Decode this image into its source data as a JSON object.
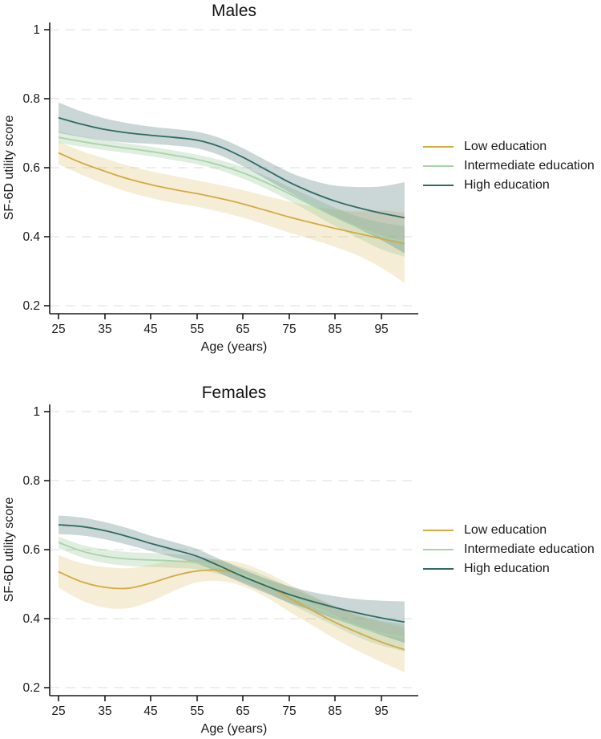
{
  "figure": {
    "ylabel": "SF-6D utility score",
    "xlabel": "Age (years)",
    "colors": {
      "low": "#d3aa45",
      "intermediate": "#a9d3ab",
      "high": "#2e6b64",
      "gridline": "#e3e3e3",
      "axis": "#1a1a1a"
    }
  },
  "chart_data": [
    {
      "type": "line",
      "title": "Males",
      "xlabel": "Age (years)",
      "ylabel": "SF-6D utility score",
      "x_ticks": [
        25,
        35,
        45,
        55,
        65,
        75,
        85,
        95
      ],
      "y_ticks": [
        1,
        0.8,
        0.6,
        0.4,
        0.2
      ],
      "xlim": [
        23,
        103
      ],
      "ylim": [
        0.2,
        1.0
      ],
      "grid": "horizontal-dashed",
      "legend_position": "right",
      "x": [
        25,
        30,
        35,
        40,
        45,
        50,
        55,
        60,
        65,
        70,
        75,
        80,
        85,
        90,
        95,
        100
      ],
      "series": [
        {
          "name": "Low education",
          "color": "#d3aa45",
          "band_color": "rgba(214,174,70,0.22)",
          "values": [
            0.643,
            0.614,
            0.59,
            0.568,
            0.551,
            0.537,
            0.525,
            0.511,
            0.495,
            0.476,
            0.457,
            0.44,
            0.424,
            0.409,
            0.394,
            0.38
          ],
          "ci_low": [
            0.61,
            0.58,
            0.553,
            0.53,
            0.512,
            0.498,
            0.487,
            0.472,
            0.455,
            0.434,
            0.412,
            0.392,
            0.37,
            0.345,
            0.31,
            0.266
          ],
          "ci_high": [
            0.676,
            0.648,
            0.627,
            0.606,
            0.59,
            0.576,
            0.563,
            0.55,
            0.535,
            0.518,
            0.502,
            0.488,
            0.478,
            0.473,
            0.476,
            0.47
          ]
        },
        {
          "name": "Intermediate education",
          "color": "#a9d3ab",
          "band_color": "rgba(150,200,150,0.30)",
          "values": [
            0.688,
            0.676,
            0.665,
            0.656,
            0.647,
            0.636,
            0.624,
            0.607,
            0.585,
            0.557,
            0.525,
            0.491,
            0.457,
            0.427,
            0.402,
            0.386
          ],
          "ci_low": [
            0.672,
            0.661,
            0.651,
            0.642,
            0.633,
            0.622,
            0.61,
            0.592,
            0.568,
            0.539,
            0.505,
            0.468,
            0.43,
            0.396,
            0.363,
            0.342
          ],
          "ci_high": [
            0.704,
            0.691,
            0.679,
            0.67,
            0.661,
            0.65,
            0.638,
            0.622,
            0.602,
            0.575,
            0.545,
            0.514,
            0.484,
            0.458,
            0.441,
            0.43
          ]
        },
        {
          "name": "High education",
          "color": "#2e6b64",
          "band_color": "rgba(79,123,118,0.30)",
          "values": [
            0.745,
            0.726,
            0.711,
            0.701,
            0.694,
            0.688,
            0.68,
            0.661,
            0.63,
            0.594,
            0.558,
            0.528,
            0.503,
            0.484,
            0.468,
            0.455
          ],
          "ci_low": [
            0.701,
            0.689,
            0.679,
            0.673,
            0.669,
            0.664,
            0.656,
            0.636,
            0.604,
            0.567,
            0.529,
            0.493,
            0.458,
            0.424,
            0.39,
            0.352
          ],
          "ci_high": [
            0.789,
            0.763,
            0.743,
            0.729,
            0.719,
            0.712,
            0.704,
            0.686,
            0.656,
            0.621,
            0.587,
            0.563,
            0.548,
            0.544,
            0.546,
            0.558
          ]
        }
      ]
    },
    {
      "type": "line",
      "title": "Females",
      "xlabel": "Age (years)",
      "ylabel": "SF-6D utility score",
      "x_ticks": [
        25,
        35,
        45,
        55,
        65,
        75,
        85,
        95
      ],
      "y_ticks": [
        1,
        0.8,
        0.6,
        0.4,
        0.2
      ],
      "xlim": [
        23,
        103
      ],
      "ylim": [
        0.2,
        1.0
      ],
      "grid": "horizontal-dashed",
      "legend_position": "right",
      "x": [
        25,
        30,
        35,
        40,
        45,
        50,
        55,
        60,
        65,
        70,
        75,
        80,
        85,
        90,
        95,
        100
      ],
      "series": [
        {
          "name": "Low education",
          "color": "#d3aa45",
          "band_color": "rgba(214,174,70,0.22)",
          "values": [
            0.536,
            0.507,
            0.491,
            0.488,
            0.503,
            0.524,
            0.538,
            0.54,
            0.527,
            0.498,
            0.46,
            0.424,
            0.389,
            0.359,
            0.332,
            0.31
          ],
          "ci_low": [
            0.49,
            0.453,
            0.432,
            0.43,
            0.45,
            0.48,
            0.505,
            0.509,
            0.494,
            0.462,
            0.42,
            0.381,
            0.341,
            0.306,
            0.274,
            0.245
          ],
          "ci_high": [
            0.584,
            0.561,
            0.55,
            0.546,
            0.556,
            0.568,
            0.571,
            0.571,
            0.56,
            0.534,
            0.5,
            0.467,
            0.437,
            0.412,
            0.39,
            0.375
          ]
        },
        {
          "name": "Intermediate education",
          "color": "#a9d3ab",
          "band_color": "rgba(150,200,150,0.30)",
          "values": [
            0.621,
            0.596,
            0.581,
            0.573,
            0.57,
            0.567,
            0.562,
            0.548,
            0.527,
            0.5,
            0.468,
            0.437,
            0.406,
            0.377,
            0.358,
            0.345
          ],
          "ci_low": [
            0.604,
            0.578,
            0.561,
            0.553,
            0.55,
            0.547,
            0.543,
            0.528,
            0.506,
            0.477,
            0.444,
            0.411,
            0.378,
            0.346,
            0.322,
            0.305
          ],
          "ci_high": [
            0.638,
            0.614,
            0.601,
            0.593,
            0.59,
            0.587,
            0.581,
            0.568,
            0.548,
            0.523,
            0.492,
            0.463,
            0.434,
            0.408,
            0.394,
            0.385
          ]
        },
        {
          "name": "High education",
          "color": "#2e6b64",
          "band_color": "rgba(79,123,118,0.30)",
          "values": [
            0.672,
            0.667,
            0.655,
            0.638,
            0.618,
            0.6,
            0.581,
            0.552,
            0.522,
            0.495,
            0.47,
            0.45,
            0.432,
            0.416,
            0.402,
            0.39
          ],
          "ci_low": [
            0.645,
            0.641,
            0.63,
            0.614,
            0.596,
            0.578,
            0.56,
            0.532,
            0.502,
            0.474,
            0.446,
            0.423,
            0.399,
            0.376,
            0.352,
            0.33
          ],
          "ci_high": [
            0.699,
            0.693,
            0.68,
            0.662,
            0.64,
            0.622,
            0.602,
            0.572,
            0.542,
            0.516,
            0.494,
            0.477,
            0.465,
            0.456,
            0.452,
            0.45
          ]
        }
      ]
    }
  ]
}
